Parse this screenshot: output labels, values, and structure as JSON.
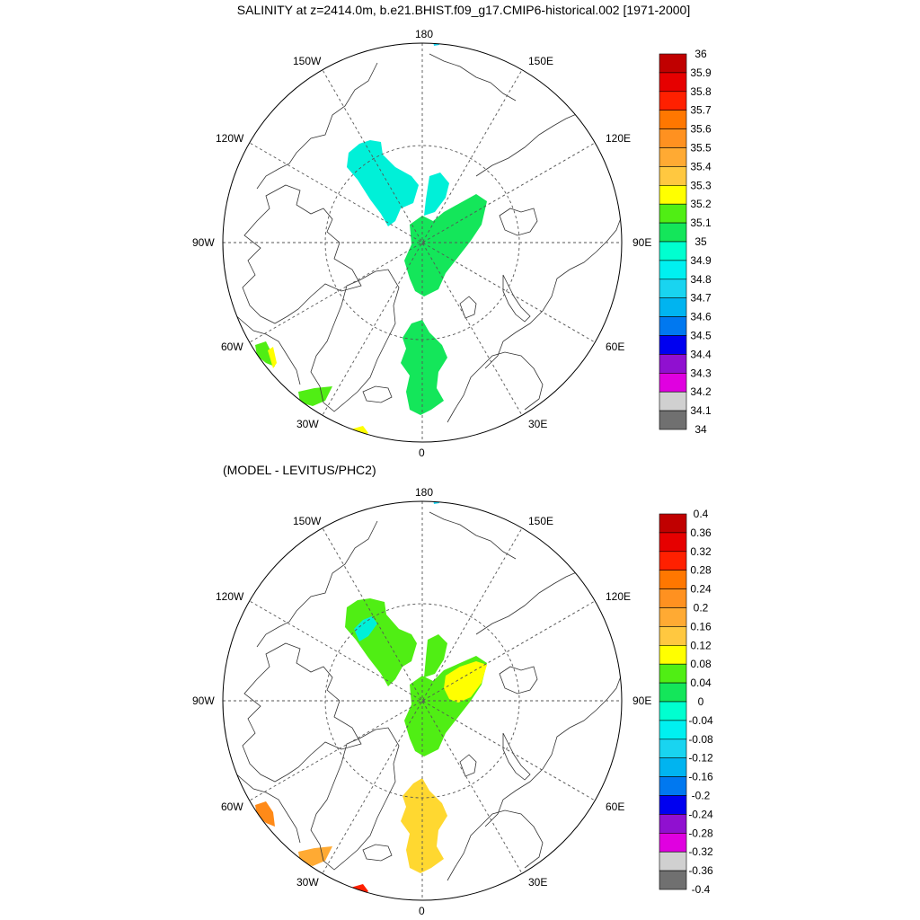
{
  "figure": {
    "title": "SALINITY at z=2414.0m, b.e21.BHIST.f09_g17.CMIP6-historical.002 [1971-2000]",
    "subtitle": "(MODEL - LEVITUS/PHC2)"
  },
  "map_labels": {
    "lon180": "180",
    "lon150w": "150W",
    "lon150e": "150E",
    "lon120w": "120W",
    "lon120e": "120E",
    "lon90w": "90W",
    "lon90e": "90E",
    "lon60w": "60W",
    "lon60e": "60E",
    "lon30w": "30W",
    "lon30e": "30E",
    "lon0": "0"
  },
  "colorbar_top": {
    "labels": [
      "36",
      "35.9",
      "35.8",
      "35.7",
      "35.6",
      "35.5",
      "35.4",
      "35.3",
      "35.2",
      "35.1",
      "35",
      "34.9",
      "34.8",
      "34.7",
      "34.6",
      "34.5",
      "34.4",
      "34.3",
      "34.2",
      "34.1",
      "34"
    ],
    "colors": [
      "#C00000",
      "#E60000",
      "#FF2000",
      "#FF7700",
      "#FF9120",
      "#FFAA33",
      "#FFC840",
      "#FFFF00",
      "#50EE14",
      "#14E65A",
      "#00FFD0",
      "#00F0F0",
      "#19D4F0",
      "#00B4F0",
      "#0078F0",
      "#0000F0",
      "#9010D0",
      "#E000E0",
      "#D0D0D0",
      "#707070"
    ]
  },
  "colorbar_bottom": {
    "labels": [
      "0.4",
      "0.36",
      "0.32",
      "0.28",
      "0.24",
      "0.2",
      "0.16",
      "0.12",
      "0.08",
      "0.04",
      "0",
      "-0.04",
      "-0.08",
      "-0.12",
      "-0.16",
      "-0.2",
      "-0.24",
      "-0.28",
      "-0.32",
      "-0.36",
      "-0.4"
    ],
    "colors": [
      "#C00000",
      "#E60000",
      "#FF2000",
      "#FF7700",
      "#FF9120",
      "#FFAA33",
      "#FFC840",
      "#FFFF00",
      "#50EE14",
      "#14E65A",
      "#00FFD0",
      "#00F0F0",
      "#19D4F0",
      "#00B4F0",
      "#0078F0",
      "#0000F0",
      "#9010D0",
      "#E000E0",
      "#D0D0D0",
      "#707070"
    ]
  }
}
